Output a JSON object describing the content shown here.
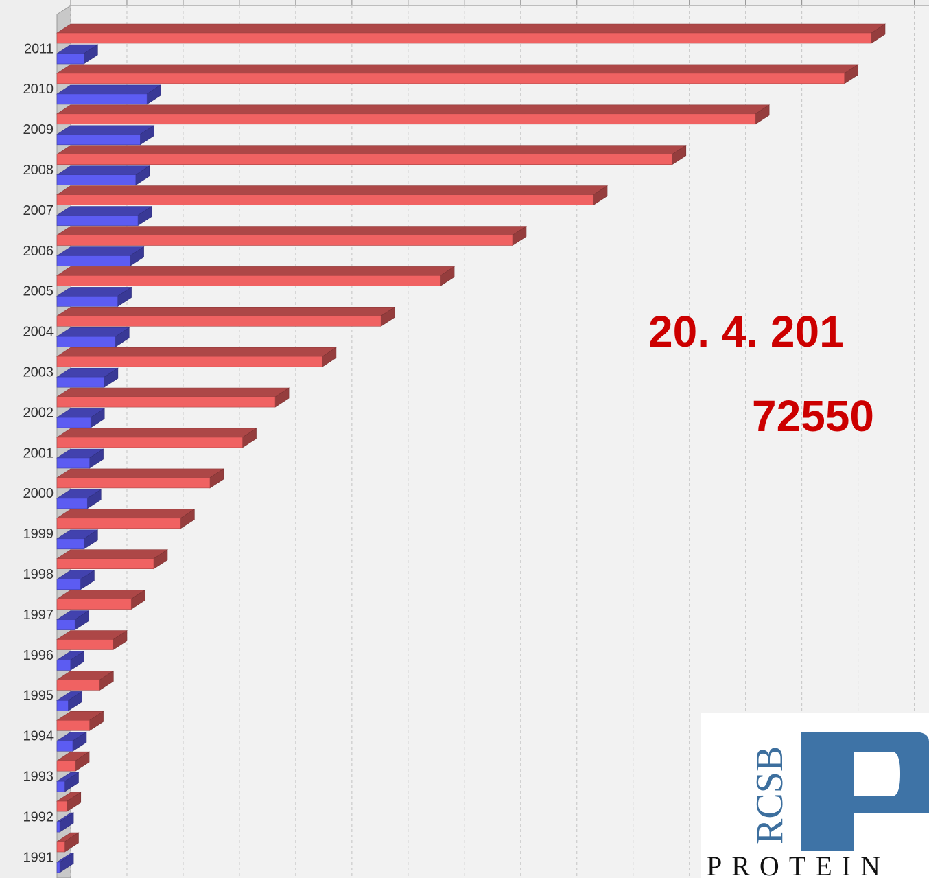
{
  "chart_data": {
    "type": "bar3d-horizontal",
    "categories": [
      "2011",
      "2010",
      "2009",
      "2008",
      "2007",
      "2006",
      "2005",
      "2004",
      "2003",
      "2002",
      "2001",
      "2000",
      "1999",
      "1998",
      "1997",
      "1996",
      "1995",
      "1994",
      "1993",
      "1992",
      "1991"
    ],
    "series": [
      {
        "color": "#f06262",
        "values": [
          72400,
          70000,
          62100,
          54700,
          47700,
          40500,
          34100,
          28800,
          23600,
          19400,
          16500,
          13600,
          11000,
          8600,
          6600,
          5000,
          3800,
          2900,
          1650,
          900,
          700
        ]
      },
      {
        "color": "#5c5cf2",
        "values": [
          2400,
          8000,
          7400,
          7000,
          7200,
          6500,
          5400,
          5200,
          4200,
          3000,
          2900,
          2700,
          2400,
          2100,
          1600,
          1200,
          1000,
          1400,
          700,
          250,
          250
        ]
      }
    ],
    "xlim": [
      0,
      76000
    ],
    "xticks": [
      0,
      5000,
      10000,
      15000,
      20000,
      25000,
      30000,
      35000,
      40000,
      45000,
      50000,
      55000,
      60000,
      65000,
      70000,
      75000
    ],
    "grid": true,
    "annotations": [
      "20. 4. 201",
      "72550"
    ],
    "logo": {
      "side": "RCSB",
      "text": "PROTEIN"
    }
  }
}
